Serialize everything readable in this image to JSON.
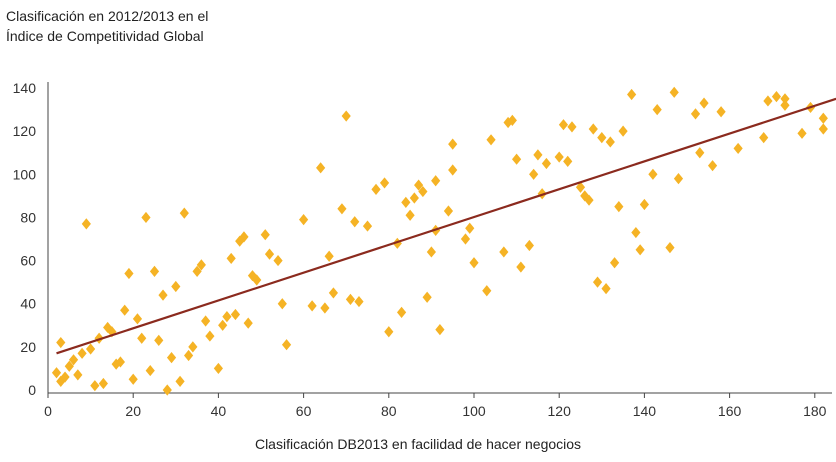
{
  "chart_data": {
    "type": "scatter",
    "title": "",
    "ylabel_lines": [
      "Clasificación en 2012/2013 en el",
      "Índice de Competitividad Global"
    ],
    "xlabel": "Clasificación DB2013 en facilidad de hacer negocios",
    "xlim": [
      0,
      185
    ],
    "ylim": [
      0,
      140
    ],
    "xticks": [
      "0",
      "20",
      "40",
      "60",
      "80",
      "100",
      "120",
      "140",
      "160",
      "180"
    ],
    "yticks": [
      "0",
      "20",
      "40",
      "60",
      "80",
      "100",
      "120",
      "140"
    ],
    "grid": false,
    "legend": "none",
    "marker_color": "#F5B325",
    "trend_color": "#8B2A1E",
    "trendline": {
      "x": [
        2,
        185
      ],
      "y": [
        17,
        135
      ]
    },
    "points": [
      [
        2,
        8
      ],
      [
        3,
        22
      ],
      [
        3,
        4
      ],
      [
        4,
        6
      ],
      [
        5,
        11
      ],
      [
        6,
        14
      ],
      [
        7,
        7
      ],
      [
        8,
        17
      ],
      [
        9,
        77
      ],
      [
        10,
        19
      ],
      [
        11,
        2
      ],
      [
        12,
        24
      ],
      [
        13,
        3
      ],
      [
        14,
        29
      ],
      [
        15,
        27
      ],
      [
        16,
        12
      ],
      [
        17,
        13
      ],
      [
        18,
        37
      ],
      [
        19,
        54
      ],
      [
        20,
        5
      ],
      [
        21,
        33
      ],
      [
        22,
        24
      ],
      [
        23,
        80
      ],
      [
        24,
        9
      ],
      [
        25,
        55
      ],
      [
        26,
        23
      ],
      [
        27,
        44
      ],
      [
        28,
        0
      ],
      [
        29,
        15
      ],
      [
        30,
        48
      ],
      [
        31,
        4
      ],
      [
        32,
        82
      ],
      [
        33,
        16
      ],
      [
        34,
        20
      ],
      [
        35,
        55
      ],
      [
        36,
        58
      ],
      [
        37,
        32
      ],
      [
        38,
        25
      ],
      [
        40,
        10
      ],
      [
        41,
        30
      ],
      [
        42,
        34
      ],
      [
        43,
        61
      ],
      [
        44,
        35
      ],
      [
        45,
        69
      ],
      [
        46,
        71
      ],
      [
        47,
        31
      ],
      [
        48,
        53
      ],
      [
        49,
        51
      ],
      [
        51,
        72
      ],
      [
        52,
        63
      ],
      [
        54,
        60
      ],
      [
        55,
        40
      ],
      [
        56,
        21
      ],
      [
        60,
        79
      ],
      [
        62,
        39
      ],
      [
        64,
        103
      ],
      [
        65,
        38
      ],
      [
        66,
        62
      ],
      [
        67,
        45
      ],
      [
        69,
        84
      ],
      [
        70,
        127
      ],
      [
        71,
        42
      ],
      [
        72,
        78
      ],
      [
        73,
        41
      ],
      [
        75,
        76
      ],
      [
        77,
        93
      ],
      [
        79,
        96
      ],
      [
        80,
        27
      ],
      [
        82,
        68
      ],
      [
        83,
        36
      ],
      [
        84,
        87
      ],
      [
        85,
        81
      ],
      [
        86,
        89
      ],
      [
        87,
        95
      ],
      [
        88,
        92
      ],
      [
        89,
        43
      ],
      [
        90,
        64
      ],
      [
        91,
        74
      ],
      [
        91,
        97
      ],
      [
        92,
        28
      ],
      [
        94,
        83
      ],
      [
        95,
        102
      ],
      [
        95,
        114
      ],
      [
        98,
        70
      ],
      [
        99,
        75
      ],
      [
        100,
        59
      ],
      [
        103,
        46
      ],
      [
        104,
        116
      ],
      [
        107,
        64
      ],
      [
        108,
        124
      ],
      [
        109,
        125
      ],
      [
        110,
        107
      ],
      [
        111,
        57
      ],
      [
        113,
        67
      ],
      [
        114,
        100
      ],
      [
        115,
        109
      ],
      [
        116,
        91
      ],
      [
        117,
        105
      ],
      [
        120,
        108
      ],
      [
        121,
        123
      ],
      [
        122,
        106
      ],
      [
        123,
        122
      ],
      [
        125,
        94
      ],
      [
        126,
        90
      ],
      [
        127,
        88
      ],
      [
        128,
        121
      ],
      [
        129,
        50
      ],
      [
        130,
        117
      ],
      [
        131,
        47
      ],
      [
        132,
        115
      ],
      [
        133,
        59
      ],
      [
        134,
        85
      ],
      [
        135,
        120
      ],
      [
        137,
        137
      ],
      [
        138,
        73
      ],
      [
        139,
        65
      ],
      [
        140,
        86
      ],
      [
        142,
        100
      ],
      [
        143,
        130
      ],
      [
        146,
        66
      ],
      [
        147,
        138
      ],
      [
        148,
        98
      ],
      [
        152,
        128
      ],
      [
        153,
        110
      ],
      [
        154,
        133
      ],
      [
        156,
        104
      ],
      [
        158,
        129
      ],
      [
        162,
        112
      ],
      [
        168,
        117
      ],
      [
        169,
        134
      ],
      [
        171,
        136
      ],
      [
        173,
        135
      ],
      [
        173,
        132
      ],
      [
        177,
        119
      ],
      [
        179,
        131
      ],
      [
        182,
        126
      ],
      [
        182,
        121
      ]
    ]
  }
}
